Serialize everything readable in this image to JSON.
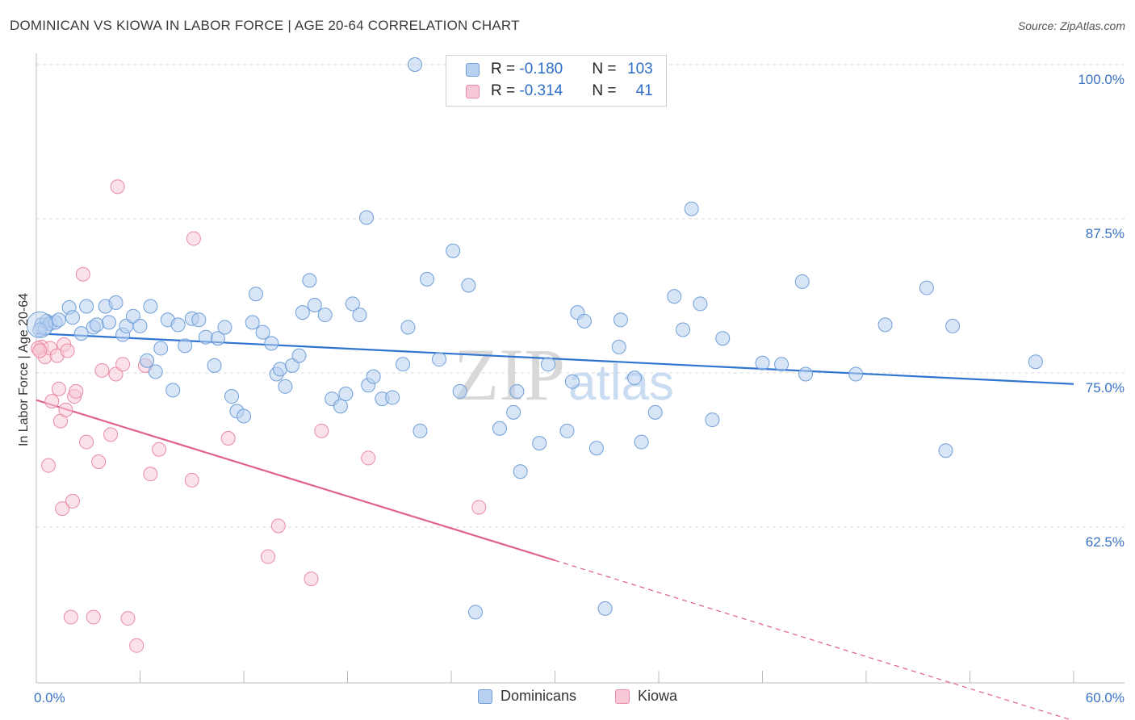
{
  "title": "DOMINICAN VS KIOWA IN LABOR FORCE | AGE 20-64 CORRELATION CHART",
  "source": "Source: ZipAtlas.com",
  "legend_top": [
    {
      "r_label": "R = ",
      "r_value": "-0.180",
      "n_label": "N = ",
      "n_value": "103"
    },
    {
      "r_label": "R = ",
      "r_value": "-0.314",
      "n_label": "N = ",
      "n_value": "41"
    }
  ],
  "legend_bottom": [
    "Dominicans",
    "Kiowa"
  ],
  "colors": {
    "blue_fill": "#b8d0f0",
    "blue_stroke": "#6f9fd8",
    "blue_line": "#2f74d0",
    "pink_fill": "#f8c8d6",
    "pink_stroke": "#e98aa6",
    "pink_line": "#e06090",
    "axis_text": "#3a72c4",
    "grid": "#d9d9d9"
  },
  "chart_data": {
    "type": "scatter",
    "title": "DOMINICAN VS KIOWA IN LABOR FORCE | AGE 20-64 CORRELATION CHART",
    "xlabel": "",
    "ylabel": "In Labor Force | Age 20-64",
    "xlim": [
      0,
      60
    ],
    "ylim": [
      51.5,
      102
    ],
    "x_tick_labels": [
      "0.0%",
      "60.0%"
    ],
    "y_ticks": [
      62.5,
      75.0,
      87.5,
      100.0
    ],
    "y_tick_labels": [
      "62.5%",
      "75.0%",
      "87.5%",
      "100.0%"
    ],
    "grid": "horizontal dashed",
    "watermark": "ZIPatlas",
    "series": [
      {
        "name": "Dominicans",
        "r": -0.18,
        "n": 103,
        "trend": {
          "x": [
            0,
            60
          ],
          "y": [
            78.2,
            74.1
          ]
        },
        "points": [
          [
            0.3,
            78.9
          ],
          [
            0.5,
            78.6
          ],
          [
            0.6,
            79.2
          ],
          [
            0.8,
            79.0
          ],
          [
            1.1,
            79.1
          ],
          [
            1.3,
            79.3
          ],
          [
            1.9,
            80.3
          ],
          [
            2.1,
            79.5
          ],
          [
            2.6,
            78.2
          ],
          [
            2.9,
            80.4
          ],
          [
            3.3,
            78.7
          ],
          [
            3.5,
            78.9
          ],
          [
            4.0,
            80.4
          ],
          [
            4.2,
            79.1
          ],
          [
            4.6,
            80.7
          ],
          [
            5.0,
            78.1
          ],
          [
            5.2,
            78.8
          ],
          [
            5.6,
            79.6
          ],
          [
            6.0,
            78.8
          ],
          [
            6.4,
            76.0
          ],
          [
            6.6,
            80.4
          ],
          [
            6.9,
            75.1
          ],
          [
            7.2,
            77.0
          ],
          [
            7.6,
            79.3
          ],
          [
            7.9,
            73.6
          ],
          [
            8.2,
            78.9
          ],
          [
            8.6,
            77.2
          ],
          [
            9.0,
            79.4
          ],
          [
            9.4,
            79.3
          ],
          [
            9.8,
            77.9
          ],
          [
            10.3,
            75.6
          ],
          [
            10.5,
            77.8
          ],
          [
            10.9,
            78.7
          ],
          [
            11.3,
            73.1
          ],
          [
            11.6,
            71.9
          ],
          [
            12.0,
            71.5
          ],
          [
            12.5,
            79.1
          ],
          [
            12.7,
            81.4
          ],
          [
            13.1,
            78.3
          ],
          [
            13.6,
            77.4
          ],
          [
            13.9,
            74.9
          ],
          [
            14.1,
            75.3
          ],
          [
            14.4,
            73.9
          ],
          [
            14.8,
            75.6
          ],
          [
            15.2,
            76.4
          ],
          [
            15.4,
            79.9
          ],
          [
            15.8,
            82.5
          ],
          [
            16.1,
            80.5
          ],
          [
            16.7,
            79.7
          ],
          [
            17.1,
            72.9
          ],
          [
            17.6,
            72.3
          ],
          [
            17.9,
            73.3
          ],
          [
            18.3,
            80.6
          ],
          [
            18.7,
            79.7
          ],
          [
            19.2,
            74.0
          ],
          [
            19.5,
            74.7
          ],
          [
            19.1,
            87.6
          ],
          [
            20.0,
            72.9
          ],
          [
            20.6,
            73.0
          ],
          [
            21.2,
            75.7
          ],
          [
            21.5,
            78.7
          ],
          [
            21.9,
            100.0
          ],
          [
            22.2,
            70.3
          ],
          [
            22.6,
            82.6
          ],
          [
            23.3,
            76.1
          ],
          [
            24.1,
            84.9
          ],
          [
            24.5,
            73.5
          ],
          [
            25.0,
            82.1
          ],
          [
            25.4,
            55.6
          ],
          [
            26.8,
            70.5
          ],
          [
            27.6,
            71.8
          ],
          [
            27.8,
            73.5
          ],
          [
            28.0,
            67.0
          ],
          [
            29.1,
            69.3
          ],
          [
            29.6,
            75.7
          ],
          [
            30.7,
            70.3
          ],
          [
            31.0,
            74.3
          ],
          [
            31.3,
            79.9
          ],
          [
            31.7,
            79.2
          ],
          [
            32.4,
            68.9
          ],
          [
            32.9,
            55.9
          ],
          [
            33.7,
            77.1
          ],
          [
            33.8,
            79.3
          ],
          [
            34.6,
            74.6
          ],
          [
            35.0,
            69.4
          ],
          [
            35.8,
            71.8
          ],
          [
            36.9,
            81.2
          ],
          [
            37.4,
            78.5
          ],
          [
            37.9,
            88.3
          ],
          [
            38.4,
            80.6
          ],
          [
            39.1,
            71.2
          ],
          [
            39.7,
            77.8
          ],
          [
            42.0,
            75.8
          ],
          [
            43.1,
            75.7
          ],
          [
            44.3,
            82.4
          ],
          [
            44.5,
            74.9
          ],
          [
            47.4,
            74.9
          ],
          [
            49.1,
            78.9
          ],
          [
            51.5,
            81.9
          ],
          [
            52.6,
            68.7
          ],
          [
            53.0,
            78.8
          ],
          [
            57.8,
            75.9
          ],
          [
            0.2,
            78.5
          ]
        ]
      },
      {
        "name": "Kiowa",
        "r": -0.314,
        "n": 41,
        "trend": {
          "x": [
            0,
            30
          ],
          "y": [
            72.8,
            59.8
          ]
        },
        "trend_dashed": {
          "x": [
            30,
            60
          ],
          "y": [
            59.8,
            46.8
          ]
        },
        "points": [
          [
            0.3,
            77.1
          ],
          [
            0.5,
            76.3
          ],
          [
            0.7,
            67.5
          ],
          [
            0.8,
            77.0
          ],
          [
            0.9,
            72.7
          ],
          [
            1.2,
            76.4
          ],
          [
            1.3,
            73.7
          ],
          [
            1.4,
            71.1
          ],
          [
            1.5,
            64.0
          ],
          [
            1.6,
            77.3
          ],
          [
            1.7,
            72.0
          ],
          [
            1.8,
            76.8
          ],
          [
            2.0,
            55.2
          ],
          [
            2.1,
            64.6
          ],
          [
            2.2,
            73.1
          ],
          [
            2.3,
            73.5
          ],
          [
            2.7,
            83.0
          ],
          [
            2.9,
            69.4
          ],
          [
            3.3,
            55.2
          ],
          [
            3.6,
            67.8
          ],
          [
            3.8,
            75.2
          ],
          [
            4.3,
            70.0
          ],
          [
            4.6,
            74.9
          ],
          [
            4.7,
            90.1
          ],
          [
            5.0,
            75.7
          ],
          [
            5.3,
            55.1
          ],
          [
            5.8,
            52.9
          ],
          [
            6.3,
            75.6
          ],
          [
            6.6,
            66.8
          ],
          [
            7.1,
            68.8
          ],
          [
            9.0,
            66.3
          ],
          [
            9.1,
            85.9
          ],
          [
            11.1,
            69.7
          ],
          [
            13.4,
            60.1
          ],
          [
            14.0,
            62.6
          ],
          [
            15.9,
            58.3
          ],
          [
            16.5,
            70.3
          ],
          [
            19.2,
            68.1
          ],
          [
            25.6,
            64.1
          ],
          [
            0.1,
            77.0
          ],
          [
            0.2,
            76.8
          ]
        ]
      }
    ]
  }
}
